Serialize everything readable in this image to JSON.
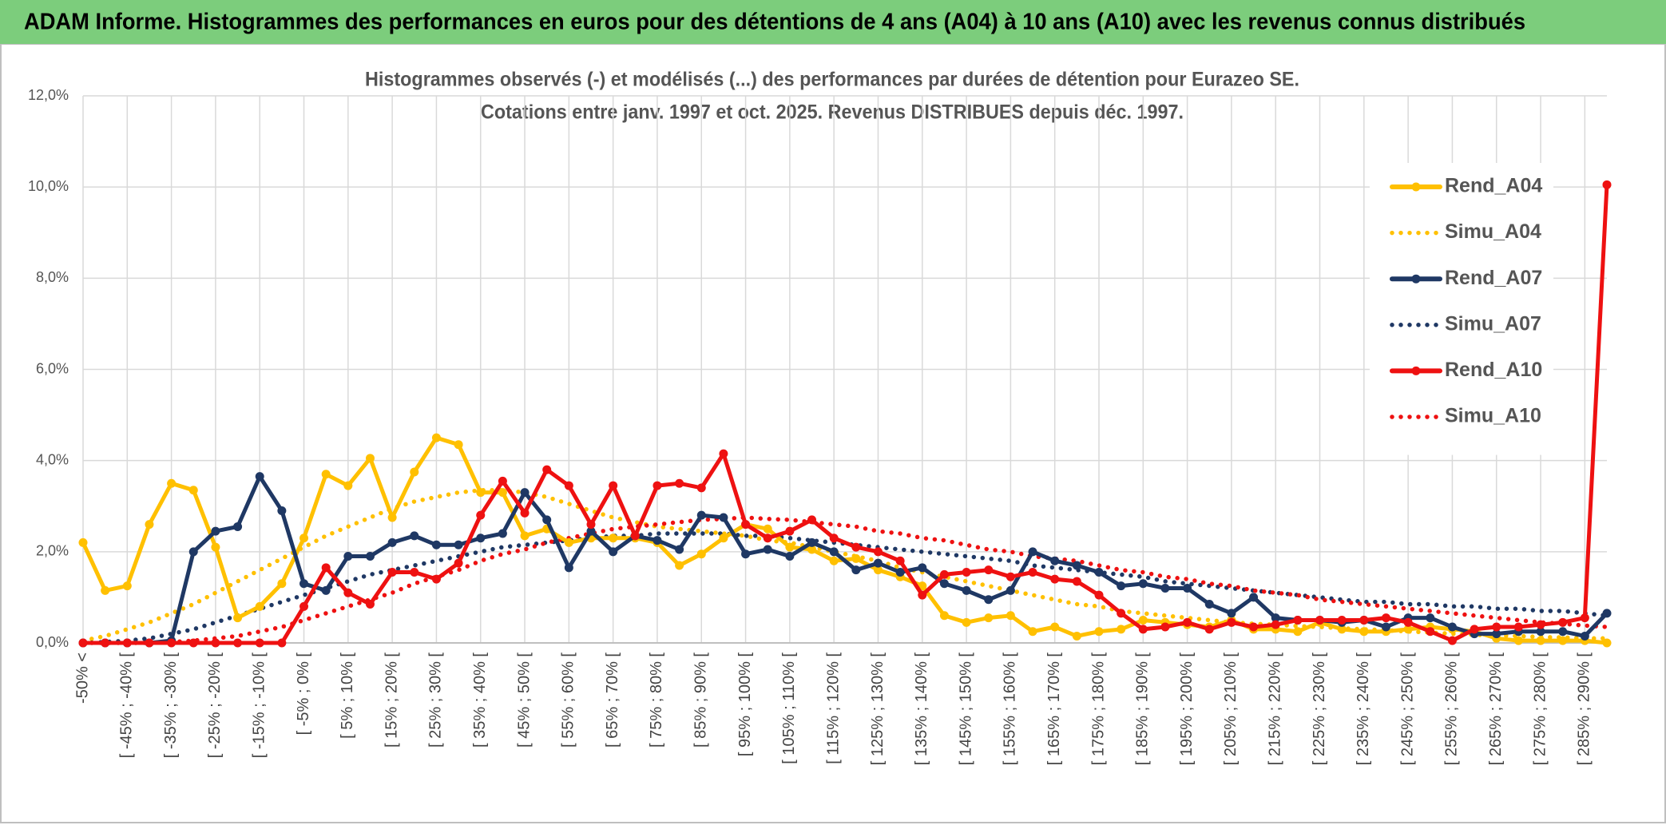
{
  "header": {
    "title": "ADAM Informe. Histogrammes des performances en euros pour des détentions de 4 ans (A04) à 10 ans (A10) avec les revenus connus distribués"
  },
  "chart_data": {
    "type": "line",
    "title": "Histogrammes observés (-) et modélisés (...) des performances par durées de détention pour Eurazeo SE.",
    "subtitle": "Cotations entre janv. 1997 et oct. 2025. Revenus DISTRIBUES depuis déc. 1997.",
    "categories": [
      "-50% <",
      null,
      "[ -45% ; -40% [",
      null,
      "[ -35% ; -30% [",
      null,
      "[ -25% ; -20% [",
      null,
      "[ -15% ; -10% [",
      null,
      "[ -5% ; 0% [",
      null,
      "[ 5% ; 10% [",
      null,
      "[ 15% ; 20% [",
      null,
      "[ 25% ; 30% [",
      null,
      "[ 35% ; 40% [",
      null,
      "[ 45% ; 50% [",
      null,
      "[ 55% ; 60% [",
      null,
      "[ 65% ; 70% [",
      null,
      "[ 75% ; 80% [",
      null,
      "[ 85% ; 90% [",
      null,
      "[ 95% ; 100% [",
      null,
      "[ 105% ; 110% [",
      null,
      "[ 115% ; 120% [",
      null,
      "[ 125% ; 130% [",
      null,
      "[ 135% ; 140% [",
      null,
      "[ 145% ; 150% [",
      null,
      "[ 155% ; 160% [",
      null,
      "[ 165% ; 170% [",
      null,
      "[ 175% ; 180% [",
      null,
      "[ 185% ; 190% [",
      null,
      "[ 195% ; 200% [",
      null,
      "[ 205% ; 210% [",
      null,
      "[ 215% ; 220% [",
      null,
      "[ 225% ; 230% [",
      null,
      "[ 235% ; 240% [",
      null,
      "[ 245% ; 250% [",
      null,
      "[ 255% ; 260% [",
      null,
      "[ 265% ; 270% [",
      null,
      "[ 275% ; 280% [",
      null,
      "[ 285% ; 290% [",
      null
    ],
    "series": [
      {
        "name": "Rend_A04",
        "color": "#ffc000",
        "style": "solid",
        "values": [
          2.2,
          1.15,
          1.25,
          2.6,
          3.5,
          3.35,
          2.1,
          0.55,
          0.8,
          1.3,
          2.3,
          3.7,
          3.45,
          4.05,
          2.75,
          3.75,
          4.5,
          4.35,
          3.3,
          3.3,
          2.35,
          2.5,
          2.2,
          2.3,
          2.3,
          2.3,
          2.2,
          1.7,
          1.95,
          2.3,
          2.6,
          2.5,
          2.1,
          2.05,
          1.8,
          1.85,
          1.6,
          1.45,
          1.25,
          0.6,
          0.45,
          0.55,
          0.6,
          0.25,
          0.35,
          0.15,
          0.25,
          0.3,
          0.5,
          0.45,
          0.4,
          0.35,
          0.5,
          0.3,
          0.3,
          0.25,
          0.45,
          0.3,
          0.25,
          0.25,
          0.3,
          0.35,
          0.3,
          0.25,
          0.1,
          0.05,
          0.05,
          0.05,
          0.05,
          0.0
        ]
      },
      {
        "name": "Simu_A04",
        "color": "#ffc000",
        "style": "dotted",
        "values": [
          0.05,
          0.15,
          0.3,
          0.45,
          0.65,
          0.85,
          1.1,
          1.35,
          1.6,
          1.85,
          2.1,
          2.35,
          2.55,
          2.75,
          2.95,
          3.1,
          3.2,
          3.3,
          3.35,
          3.35,
          3.3,
          3.2,
          3.05,
          2.9,
          2.75,
          2.65,
          2.55,
          2.5,
          2.45,
          2.4,
          2.35,
          2.25,
          2.2,
          2.1,
          2.0,
          1.9,
          1.8,
          1.65,
          1.55,
          1.45,
          1.35,
          1.25,
          1.15,
          1.05,
          0.95,
          0.85,
          0.8,
          0.7,
          0.65,
          0.6,
          0.55,
          0.5,
          0.45,
          0.42,
          0.4,
          0.37,
          0.35,
          0.32,
          0.3,
          0.28,
          0.25,
          0.23,
          0.2,
          0.18,
          0.16,
          0.15,
          0.13,
          0.12,
          0.1,
          0.1
        ]
      },
      {
        "name": "Rend_A07",
        "color": "#1f3864",
        "style": "solid",
        "values": [
          0,
          0,
          0,
          0,
          0.05,
          2.0,
          2.45,
          2.55,
          3.65,
          2.9,
          1.3,
          1.15,
          1.9,
          1.9,
          2.2,
          2.35,
          2.15,
          2.15,
          2.3,
          2.4,
          3.3,
          2.7,
          1.65,
          2.45,
          2.0,
          2.35,
          2.25,
          2.05,
          2.8,
          2.75,
          1.95,
          2.05,
          1.9,
          2.2,
          2.0,
          1.6,
          1.75,
          1.55,
          1.65,
          1.3,
          1.15,
          0.95,
          1.15,
          2.0,
          1.8,
          1.7,
          1.55,
          1.25,
          1.3,
          1.2,
          1.2,
          0.85,
          0.65,
          1.0,
          0.55,
          0.5,
          0.5,
          0.45,
          0.5,
          0.35,
          0.55,
          0.55,
          0.35,
          0.2,
          0.2,
          0.25,
          0.25,
          0.25,
          0.15,
          0.65
        ]
      },
      {
        "name": "Simu_A07",
        "color": "#1f3864",
        "style": "dotted",
        "values": [
          0,
          0.02,
          0.05,
          0.1,
          0.2,
          0.3,
          0.45,
          0.6,
          0.75,
          0.9,
          1.05,
          1.2,
          1.35,
          1.5,
          1.6,
          1.7,
          1.8,
          1.9,
          2.0,
          2.1,
          2.15,
          2.2,
          2.25,
          2.3,
          2.35,
          2.35,
          2.4,
          2.4,
          2.4,
          2.4,
          2.35,
          2.35,
          2.3,
          2.25,
          2.2,
          2.15,
          2.1,
          2.05,
          2.0,
          1.95,
          1.9,
          1.85,
          1.8,
          1.7,
          1.65,
          1.6,
          1.55,
          1.5,
          1.45,
          1.35,
          1.3,
          1.25,
          1.2,
          1.15,
          1.1,
          1.05,
          1.0,
          0.95,
          0.9,
          0.9,
          0.85,
          0.85,
          0.8,
          0.8,
          0.75,
          0.75,
          0.7,
          0.7,
          0.65,
          0.6
        ]
      },
      {
        "name": "Rend_A10",
        "color": "#ee1111",
        "style": "solid",
        "values": [
          0,
          0,
          0,
          0,
          0,
          0,
          0,
          0,
          0,
          0,
          0.8,
          1.65,
          1.1,
          0.85,
          1.55,
          1.55,
          1.4,
          1.75,
          2.8,
          3.55,
          2.85,
          3.8,
          3.45,
          2.6,
          3.45,
          2.35,
          3.45,
          3.5,
          3.4,
          4.15,
          2.6,
          2.3,
          2.45,
          2.7,
          2.3,
          2.1,
          2.0,
          1.8,
          1.05,
          1.5,
          1.55,
          1.6,
          1.45,
          1.55,
          1.4,
          1.35,
          1.05,
          0.65,
          0.3,
          0.35,
          0.45,
          0.3,
          0.45,
          0.35,
          0.4,
          0.5,
          0.5,
          0.5,
          0.5,
          0.55,
          0.45,
          0.25,
          0.05,
          0.3,
          0.35,
          0.35,
          0.4,
          0.45,
          0.55,
          10.05
        ]
      },
      {
        "name": "Simu_A10",
        "color": "#ee1111",
        "style": "dotted",
        "values": [
          0,
          0,
          0,
          0,
          0.02,
          0.05,
          0.1,
          0.15,
          0.25,
          0.35,
          0.5,
          0.65,
          0.8,
          0.95,
          1.1,
          1.3,
          1.45,
          1.6,
          1.8,
          1.95,
          2.05,
          2.2,
          2.3,
          2.4,
          2.5,
          2.55,
          2.6,
          2.65,
          2.7,
          2.72,
          2.75,
          2.72,
          2.7,
          2.65,
          2.6,
          2.55,
          2.45,
          2.4,
          2.3,
          2.25,
          2.15,
          2.05,
          2.0,
          1.9,
          1.85,
          1.8,
          1.7,
          1.6,
          1.55,
          1.45,
          1.4,
          1.3,
          1.25,
          1.15,
          1.1,
          1.05,
          0.95,
          0.9,
          0.85,
          0.8,
          0.75,
          0.7,
          0.65,
          0.6,
          0.55,
          0.5,
          0.45,
          0.42,
          0.38,
          0.35
        ]
      }
    ],
    "ylim": [
      0,
      12
    ],
    "yticks": [
      {
        "value": 0,
        "label": "0,0%"
      },
      {
        "value": 2,
        "label": "2,0%"
      },
      {
        "value": 4,
        "label": "4,0%"
      },
      {
        "value": 6,
        "label": "6,0%"
      },
      {
        "value": 8,
        "label": "8,0%"
      },
      {
        "value": 10,
        "label": "10,0%"
      },
      {
        "value": 12,
        "label": "12,0%"
      }
    ],
    "grid": true,
    "legend": "right"
  }
}
